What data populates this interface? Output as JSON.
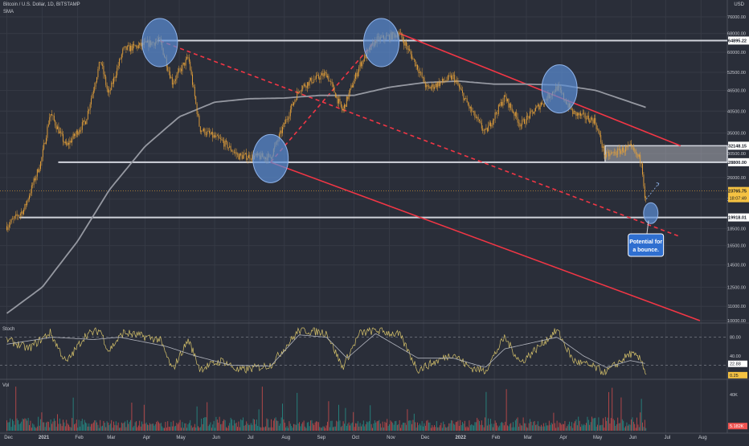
{
  "header": {
    "symbol": "Bitcoin / U.S. Dollar, 1D, BITSTAMP",
    "indicator": "SMA",
    "currency": "USD"
  },
  "panes": {
    "stoch_label": "Stoch",
    "vol_label": "Vol"
  },
  "annotation": {
    "bounce_line1": "Potential for",
    "bounce_line2": "a bounce."
  },
  "colors": {
    "background": "#2a2e39",
    "candle": "#e8a33a",
    "sma": "#9598a1",
    "level": "#d1d4dc",
    "trend": "#f23645",
    "highlight": "#5b8fd6",
    "stoch_k": "#d6c26a",
    "stoch_d": "#b2b5be",
    "vol_up": "#26a69a",
    "vol_down": "#ef5350",
    "price_badge": "#f5c242"
  },
  "chart_data": {
    "type": "line",
    "title": "Bitcoin / U.S. Dollar, 1D, BITSTAMP",
    "x_tick_labels": [
      "Dec",
      "2021",
      "Feb",
      "Mar",
      "Apr",
      "May",
      "Jun",
      "Jul",
      "Aug",
      "Sep",
      "Oct",
      "Nov",
      "Dec",
      "2022",
      "Feb",
      "Mar",
      "Apr",
      "May",
      "Jun",
      "Jul",
      "Aug"
    ],
    "y_scale": "log",
    "ylim": [
      10000,
      76000
    ],
    "y_tick_labels": [
      "76000.00",
      "68000.00",
      "60000.00",
      "52500.00",
      "46500.00",
      "40500.00",
      "35000.00",
      "30500.00",
      "26000.00",
      "22500.00",
      "18500.00",
      "16500.00",
      "14500.00",
      "12500.00",
      "11000.00",
      "10000.00"
    ],
    "price_badges": [
      {
        "label": "64895.22",
        "value": 64895.22
      },
      {
        "label": "32148.15",
        "value": 32148.15
      },
      {
        "label": "28800.00",
        "value": 28800
      },
      {
        "label": "23765.75",
        "value": 23765.75
      },
      {
        "label": "19918.01",
        "value": 19918.01
      }
    ],
    "countdown_label": "18:07:49",
    "series": [
      {
        "name": "BTCUSD",
        "points": [
          [
            "2020-12-01",
            18800
          ],
          [
            "2020-12-16",
            21000
          ],
          [
            "2020-12-31",
            29000
          ],
          [
            "2021-01-08",
            40000
          ],
          [
            "2021-01-22",
            32000
          ],
          [
            "2021-02-08",
            38000
          ],
          [
            "2021-02-21",
            57000
          ],
          [
            "2021-02-28",
            45000
          ],
          [
            "2021-03-13",
            61000
          ],
          [
            "2021-04-14",
            64800
          ],
          [
            "2021-04-25",
            49000
          ],
          [
            "2021-05-09",
            58000
          ],
          [
            "2021-05-19",
            36000
          ],
          [
            "2021-06-08",
            33000
          ],
          [
            "2021-06-22",
            30000
          ],
          [
            "2021-07-20",
            29800
          ],
          [
            "2021-08-14",
            47000
          ],
          [
            "2021-08-24",
            49500
          ],
          [
            "2021-09-07",
            52000
          ],
          [
            "2021-09-21",
            40500
          ],
          [
            "2021-10-06",
            55000
          ],
          [
            "2021-10-20",
            65000
          ],
          [
            "2021-11-10",
            68000
          ],
          [
            "2021-11-26",
            54000
          ],
          [
            "2021-12-04",
            47000
          ],
          [
            "2021-12-27",
            51000
          ],
          [
            "2022-01-10",
            41500
          ],
          [
            "2022-01-24",
            35000
          ],
          [
            "2022-02-10",
            44500
          ],
          [
            "2022-02-24",
            37000
          ],
          [
            "2022-03-28",
            47500
          ],
          [
            "2022-04-11",
            40000
          ],
          [
            "2022-04-30",
            38000
          ],
          [
            "2022-05-09",
            30000
          ],
          [
            "2022-05-31",
            31800
          ],
          [
            "2022-06-10",
            29000
          ],
          [
            "2022-06-13",
            22500
          ],
          [
            "2022-06-14",
            22500
          ]
        ]
      },
      {
        "name": "SMA",
        "points": [
          [
            "2020-12-01",
            10500
          ],
          [
            "2021-01-01",
            12500
          ],
          [
            "2021-02-01",
            17000
          ],
          [
            "2021-03-01",
            24000
          ],
          [
            "2021-04-01",
            32000
          ],
          [
            "2021-05-01",
            39000
          ],
          [
            "2021-06-01",
            43000
          ],
          [
            "2021-07-01",
            44000
          ],
          [
            "2021-08-01",
            44200
          ],
          [
            "2021-09-01",
            45000
          ],
          [
            "2021-10-01",
            45000
          ],
          [
            "2021-11-01",
            47500
          ],
          [
            "2021-12-01",
            49000
          ],
          [
            "2022-01-01",
            49500
          ],
          [
            "2022-02-01",
            48500
          ],
          [
            "2022-03-01",
            48500
          ],
          [
            "2022-04-01",
            48200
          ],
          [
            "2022-05-01",
            46500
          ],
          [
            "2022-06-14",
            41500
          ]
        ]
      }
    ],
    "horizontal_levels": [
      64895.22,
      28800,
      19918.01,
      32148.15
    ],
    "range_box": {
      "from_date": "2022-05-09",
      "low": 28800,
      "high": 32148.15
    },
    "trendlines": [
      {
        "style": "solid",
        "points": [
          [
            "2021-11-10",
            68000
          ],
          [
            "2022-07-14",
            32148
          ]
        ]
      },
      {
        "style": "solid",
        "points": [
          [
            "2021-07-20",
            28800
          ],
          [
            "2022-07-31",
            10000
          ]
        ]
      },
      {
        "style": "dashed",
        "points": [
          [
            "2021-04-14",
            64800
          ],
          [
            "2022-07-14",
            17500
          ]
        ]
      },
      {
        "style": "dashed",
        "points": [
          [
            "2021-07-20",
            28800
          ],
          [
            "2021-10-20",
            65000
          ]
        ]
      }
    ],
    "highlights": [
      {
        "date": "2021-04-14",
        "value": 64000
      },
      {
        "date": "2021-07-20",
        "value": 29500
      },
      {
        "date": "2021-10-25",
        "value": 64000
      },
      {
        "date": "2022-03-30",
        "value": 47000
      },
      {
        "date": "2022-06-18",
        "value": 20500
      }
    ],
    "oscillator": {
      "name": "Stoch",
      "tick_labels": [
        "80.00",
        "40.00",
        "22.88",
        "0.25"
      ],
      "ylim": [
        0,
        100
      ],
      "guide_levels": [
        80,
        20
      ],
      "k_points": [
        [
          "2020-12-01",
          75
        ],
        [
          "2020-12-20",
          55
        ],
        [
          "2021-01-08",
          90
        ],
        [
          "2021-01-22",
          25
        ],
        [
          "2021-02-08",
          85
        ],
        [
          "2021-02-21",
          95
        ],
        [
          "2021-02-28",
          50
        ],
        [
          "2021-03-13",
          90
        ],
        [
          "2021-04-14",
          75
        ],
        [
          "2021-04-25",
          10
        ],
        [
          "2021-05-09",
          75
        ],
        [
          "2021-05-19",
          12
        ],
        [
          "2021-06-08",
          30
        ],
        [
          "2021-06-22",
          8
        ],
        [
          "2021-07-20",
          20
        ],
        [
          "2021-08-14",
          95
        ],
        [
          "2021-09-07",
          90
        ],
        [
          "2021-09-21",
          15
        ],
        [
          "2021-10-06",
          88
        ],
        [
          "2021-10-20",
          95
        ],
        [
          "2021-11-10",
          85
        ],
        [
          "2021-11-26",
          10
        ],
        [
          "2021-12-27",
          45
        ],
        [
          "2022-01-10",
          15
        ],
        [
          "2022-01-24",
          8
        ],
        [
          "2022-02-10",
          80
        ],
        [
          "2022-02-24",
          25
        ],
        [
          "2022-03-28",
          95
        ],
        [
          "2022-04-11",
          30
        ],
        [
          "2022-04-30",
          15
        ],
        [
          "2022-05-09",
          3
        ],
        [
          "2022-05-31",
          45
        ],
        [
          "2022-06-10",
          30
        ],
        [
          "2022-06-14",
          1
        ]
      ],
      "d_points": [
        [
          "2020-12-01",
          65
        ],
        [
          "2021-01-10",
          80
        ],
        [
          "2021-02-15",
          75
        ],
        [
          "2021-03-10",
          80
        ],
        [
          "2021-04-20",
          60
        ],
        [
          "2021-05-15",
          40
        ],
        [
          "2021-06-15",
          20
        ],
        [
          "2021-07-20",
          18
        ],
        [
          "2021-08-14",
          85
        ],
        [
          "2021-09-07",
          80
        ],
        [
          "2021-09-25",
          35
        ],
        [
          "2021-10-20",
          88
        ],
        [
          "2021-11-26",
          35
        ],
        [
          "2021-12-27",
          35
        ],
        [
          "2022-01-24",
          15
        ],
        [
          "2022-02-10",
          55
        ],
        [
          "2022-03-28",
          80
        ],
        [
          "2022-04-20",
          40
        ],
        [
          "2022-05-10",
          15
        ],
        [
          "2022-05-31",
          30
        ],
        [
          "2022-06-14",
          23
        ]
      ]
    },
    "volume": {
      "name": "Vol",
      "tick_labels": [
        "40K",
        "5.182K"
      ],
      "ymax": 50000
    }
  }
}
